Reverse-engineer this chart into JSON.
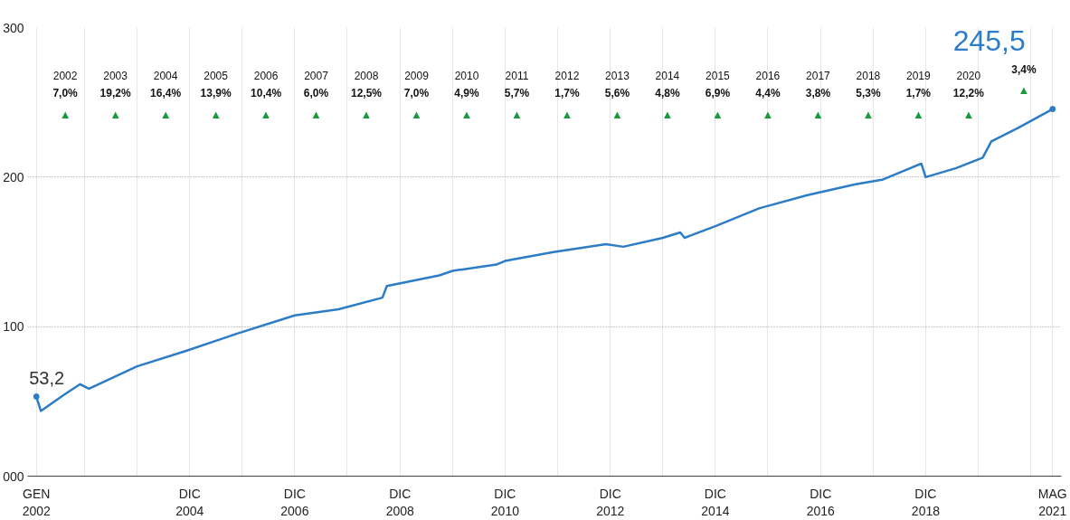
{
  "chart_data": {
    "type": "line",
    "x": [
      "2002-01",
      "2002-02",
      "2002-07",
      "2002-11",
      "2003-01",
      "2003-12",
      "2004-11",
      "2005-11",
      "2006-12",
      "2007-10",
      "2008-08",
      "2008-09",
      "2009-09",
      "2009-12",
      "2010-10",
      "2010-12",
      "2011-11",
      "2012-11",
      "2013-03",
      "2013-12",
      "2014-04",
      "2014-05",
      "2014-12",
      "2015-10",
      "2016-09",
      "2017-08",
      "2018-02",
      "2018-11",
      "2018-12",
      "2019-07",
      "2020-01",
      "2020-03",
      "2020-09",
      "2021-05"
    ],
    "series": [
      {
        "color": "#2d7cc6",
        "values": [
          53.2,
          43.6,
          53.7,
          61.5,
          58.5,
          73.4,
          83.6,
          95.5,
          107.5,
          111.6,
          119.4,
          127.2,
          134.3,
          137.3,
          141.5,
          143.9,
          149.9,
          155.2,
          153.4,
          159.4,
          163,
          159.4,
          167.2,
          179.1,
          188,
          195.2,
          198.2,
          209,
          200,
          206,
          213,
          223.9,
          232.8,
          245.5
        ]
      }
    ],
    "xlim": [
      "2001-11",
      "2021-07"
    ],
    "xticks": [
      {
        "value": "2002-01",
        "label": "GEN\n2002"
      },
      {
        "value": "2002-12",
        "label": null
      },
      {
        "value": "2003-12",
        "label": null
      },
      {
        "value": "2004-12",
        "label": "DIC\n2004"
      },
      {
        "value": "2005-12",
        "label": null
      },
      {
        "value": "2006-12",
        "label": "DIC\n2006"
      },
      {
        "value": "2007-12",
        "label": null
      },
      {
        "value": "2008-12",
        "label": "DIC\n2008"
      },
      {
        "value": "2009-12",
        "label": null
      },
      {
        "value": "2010-12",
        "label": "DIC\n2010"
      },
      {
        "value": "2011-12",
        "label": null
      },
      {
        "value": "2012-12",
        "label": "DIC\n2012"
      },
      {
        "value": "2013-12",
        "label": null
      },
      {
        "value": "2014-12",
        "label": "DIC\n2014"
      },
      {
        "value": "2015-12",
        "label": null
      },
      {
        "value": "2016-12",
        "label": "DIC\n2016"
      },
      {
        "value": "2017-12",
        "label": null
      },
      {
        "value": "2018-12",
        "label": "DIC\n2018"
      },
      {
        "value": "2019-12",
        "label": null
      },
      {
        "value": "2020-12",
        "label": null
      },
      {
        "value": "2021-05",
        "label": "MAG\n2021"
      }
    ],
    "ylim": [
      0,
      300
    ],
    "yticks": [
      {
        "value": 0,
        "label": "000"
      },
      100,
      200,
      300
    ],
    "grid": true,
    "marker": "none",
    "line_style": "solid",
    "annotations": [
      {
        "text": "53,2",
        "x": "2002-01",
        "y": 53.2
      },
      {
        "text": "245,5",
        "x": "2021-05",
        "y": 245.5
      },
      "2002\n7,0%\n▲",
      "2003\n19,2%\n▲",
      "2004\n16,4%\n▲",
      "2005\n13,9%\n▲",
      "2006\n10,4%\n▲",
      "2007\n6,0%\n▲",
      "2008\n12,5%\n▲",
      "2009\n7,0%\n▲",
      "2010\n4,9%\n▲",
      "2011\n5,7%\n▲",
      "2012\n1,7%\n▲",
      "2013\n5,6%\n▲",
      "2014\n4,8%\n▲",
      "2015\n6,9%\n▲",
      "2016\n4,4%\n▲",
      "2017\n3,8%\n▲",
      "2018\n5,3%\n▲",
      "2019\n1,7%\n▲",
      "2020\n12,2%\n▲",
      "3,4%\n▲"
    ]
  }
}
